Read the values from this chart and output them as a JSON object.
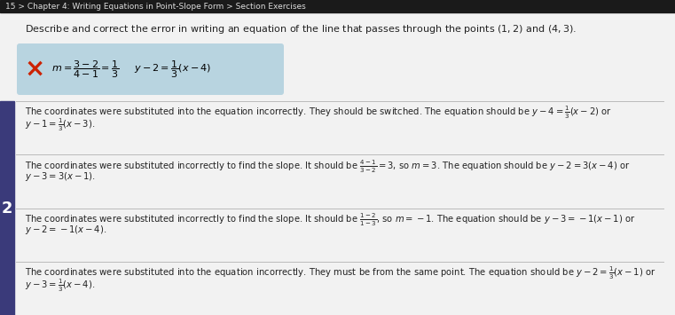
{
  "title_bar": "15 > Chapter 4: Writing Equations in Point-Slope Form > Section Exercises",
  "question_plain": "Describe and correct the error in writing an equation of the line that passes through the points ",
  "question_points": "(1, 2) and (4, 3).",
  "error_formula": "$m=\\dfrac{3-2}{4-1}=\\dfrac{1}{3}$     $y-2=\\dfrac{1}{3}(x-4)$",
  "error_box_bg": "#b8d4e0",
  "x_color": "#cc2200",
  "answer_number": "2",
  "badge_bg": "#3a3a7a",
  "bg_color": "#e8e8e8",
  "content_bg": "#f0f0f0",
  "divider_color": "#bbbbbb",
  "option1_line1": "The coordinates were substituted into the equation incorrectly. They should be switched. The equation should be $y-4=\\frac{1}{3}(x-2)$ or",
  "option1_line2": "$y-1=\\frac{1}{3}(x-3)$.",
  "option2_line1": "The coordinates were substituted incorrectly to find the slope. It should be $\\frac{4-1}{3-2}=3$, so $m=3$. The equation should be $y-2=3(x-4)$ or",
  "option2_line2": "$y-3=3(x-1)$.",
  "option3_line1": "The coordinates were substituted incorrectly to find the slope. It should be $\\frac{1-2}{1-3}$, so $m=-1$. The equation should be $y-3=-1(x-1)$ or",
  "option3_line2": "$y-2=-1(x-4)$.",
  "option4_line1": "The coordinates were substituted into the equation incorrectly. They must be from the same point. The equation should be $y-2=\\frac{1}{3}(x-1)$ or",
  "option4_line2": "$y-3=\\frac{1}{3}(x-4)$.",
  "title_bg": "#1a1a1a",
  "title_fg": "#dddddd",
  "text_color": "#222222",
  "font_size_title": 6.5,
  "font_size_question": 8.0,
  "font_size_options": 7.2,
  "font_size_formula": 8.0,
  "font_size_x": 20,
  "font_size_badge": 13
}
